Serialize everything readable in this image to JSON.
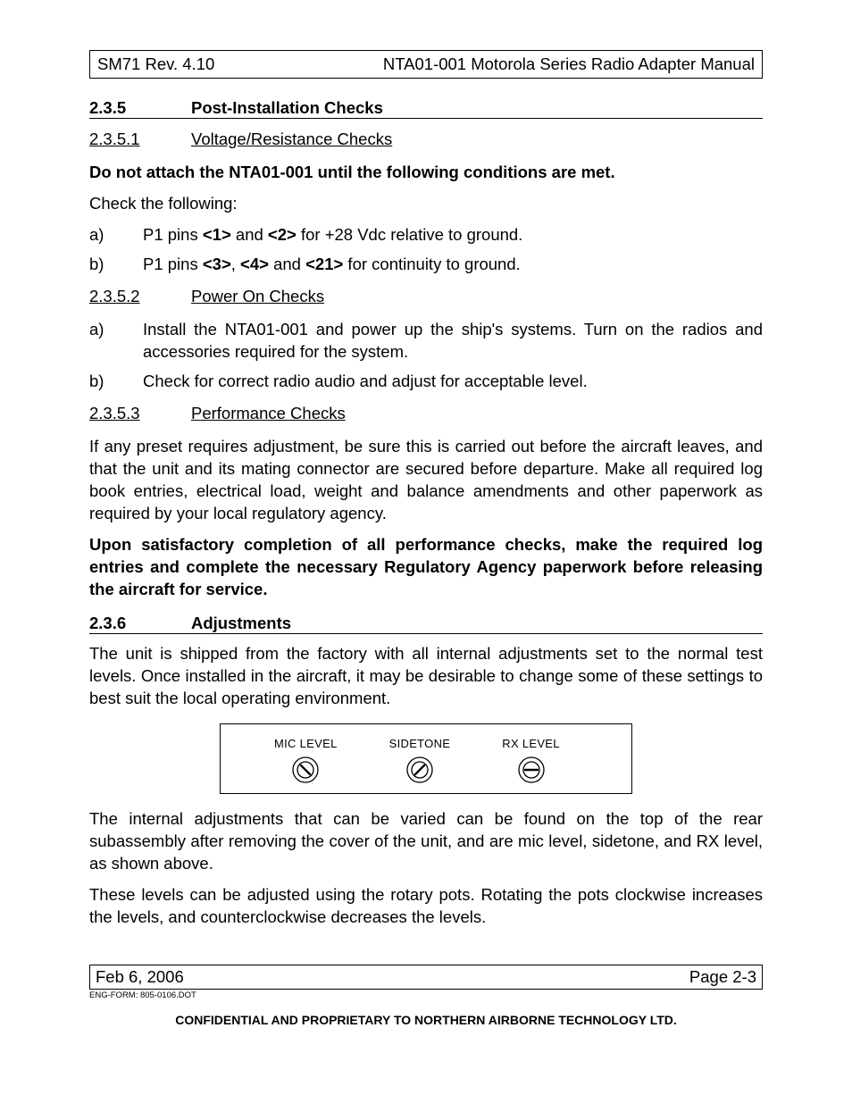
{
  "header": {
    "left": "SM71 Rev. 4.10",
    "right": "NTA01-001 Motorola Series Radio Adapter Manual"
  },
  "sections": {
    "s235": {
      "num": "2.3.5",
      "title": "Post-Installation Checks"
    },
    "s2351": {
      "num": "2.3.5.1",
      "title": "Voltage/Resistance Checks"
    },
    "s2352": {
      "num": "2.3.5.2",
      "title": "Power On Checks"
    },
    "s2353": {
      "num": "2.3.5.3",
      "title": "Performance Checks"
    },
    "s236": {
      "num": "2.3.6",
      "title": "Adjustments"
    }
  },
  "paras": {
    "p1_bold": "Do not attach the NTA01-001 until the following conditions are met.",
    "p2": "Check the following:",
    "list_a1_a": "a)",
    "list_a1_b": "b)",
    "list_b1_a": "a)",
    "list_b1_b": "b)",
    "a1_pre": "P1 pins ",
    "a1_b1": "<1>",
    "a1_mid1": " and ",
    "a1_b2": "<2>",
    "a1_post": " for +28 Vdc relative to ground.",
    "b1_pre": "P1 pins ",
    "b1_b1": "<3>",
    "b1_mid1": ",  ",
    "b1_b2": "<4>",
    "b1_mid2": " and ",
    "b1_b3": "<21>",
    "b1_post": " for continuity to ground.",
    "power_a": "Install the NTA01-001 and power up the ship's systems.  Turn on the radios and accessories required for the system.",
    "power_b": "Check for correct radio audio and adjust for acceptable level.",
    "perf_p1": "If any preset requires adjustment, be sure this is carried out before the aircraft leaves, and that the unit and its mating connector are secured before departure.  Make all required log book entries, electrical load, weight and balance amendments and other paperwork as required by your local regulatory agency.",
    "perf_p2_bold": "Upon satisfactory completion of all performance checks, make the required log entries and complete the necessary Regulatory Agency paperwork before releasing the aircraft for service.",
    "adj_p1": "The unit is shipped from the factory with all internal adjustments set to the normal test levels.  Once installed in the aircraft, it may be desirable to change some of these settings to best suit the local operating environment.",
    "adj_p2": "The internal adjustments that can be varied can be found on the top of the rear subassembly after removing the cover of the unit, and are mic level, sidetone, and RX level, as shown above.",
    "adj_p3": "These levels can be adjusted using the rotary pots.  Rotating the pots clockwise increases the levels, and counterclockwise decreases the levels."
  },
  "diagram": {
    "pots": [
      {
        "label": "MIC LEVEL",
        "angle": 135
      },
      {
        "label": "SIDETONE",
        "angle": 45
      },
      {
        "label": "RX LEVEL",
        "angle": 0
      }
    ],
    "pot_style": {
      "outer_r": 14,
      "inner_r": 9,
      "slot_len": 14,
      "slot_w": 2.4,
      "stroke": "#000000",
      "stroke_w": 1.3,
      "fill": "#ffffff"
    }
  },
  "footer": {
    "date": "Feb 6, 2006",
    "page": "Page 2-3",
    "form_code": "ENG-FORM: 805-0106.DOT",
    "confidential": "CONFIDENTIAL AND PROPRIETARY TO NORTHERN AIRBORNE TECHNOLOGY LTD."
  }
}
